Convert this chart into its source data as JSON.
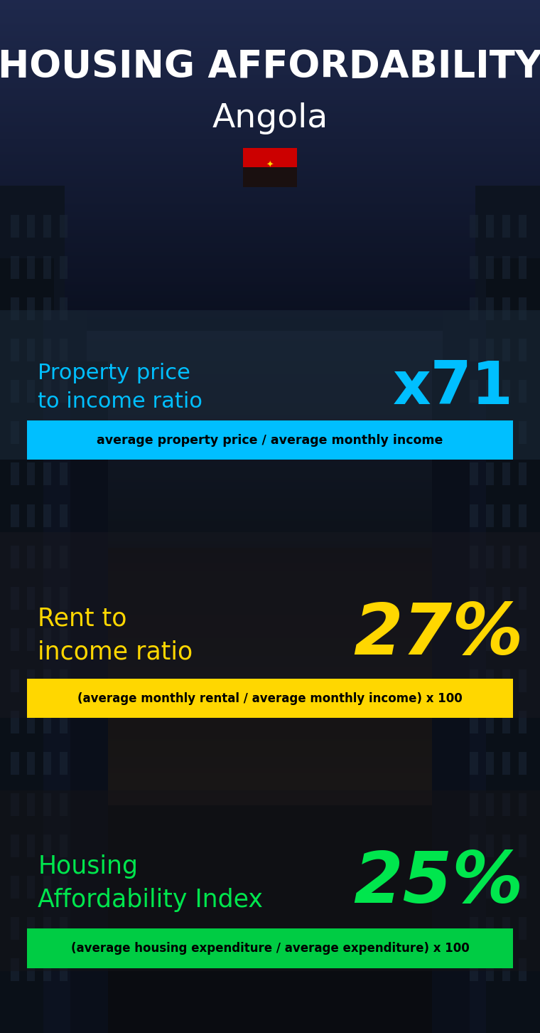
{
  "title_line1": "HOUSING AFFORDABILITY",
  "title_line2": "Angola",
  "bg_color": "#0a0e18",
  "section1_label": "Property price\nto income ratio",
  "section1_value": "x71",
  "section1_label_color": "#00bfff",
  "section1_value_color": "#00bfff",
  "section1_banner_text": "average property price / average monthly income",
  "section1_banner_bg": "#00bfff",
  "section1_banner_fg": "#000000",
  "section2_label": "Rent to\nincome ratio",
  "section2_value": "27%",
  "section2_label_color": "#ffd700",
  "section2_value_color": "#ffd700",
  "section2_banner_text": "(average monthly rental / average monthly income) x 100",
  "section2_banner_bg": "#ffd700",
  "section2_banner_fg": "#000000",
  "section3_label": "Housing\nAffordability Index",
  "section3_value": "25%",
  "section3_label_color": "#00e64d",
  "section3_value_color": "#00e64d",
  "section3_banner_text": "(average housing expenditure / average expenditure) x 100",
  "section3_banner_bg": "#00cc44",
  "section3_banner_fg": "#000000",
  "fig_width": 7.6,
  "fig_height": 14.52,
  "dpi": 100
}
